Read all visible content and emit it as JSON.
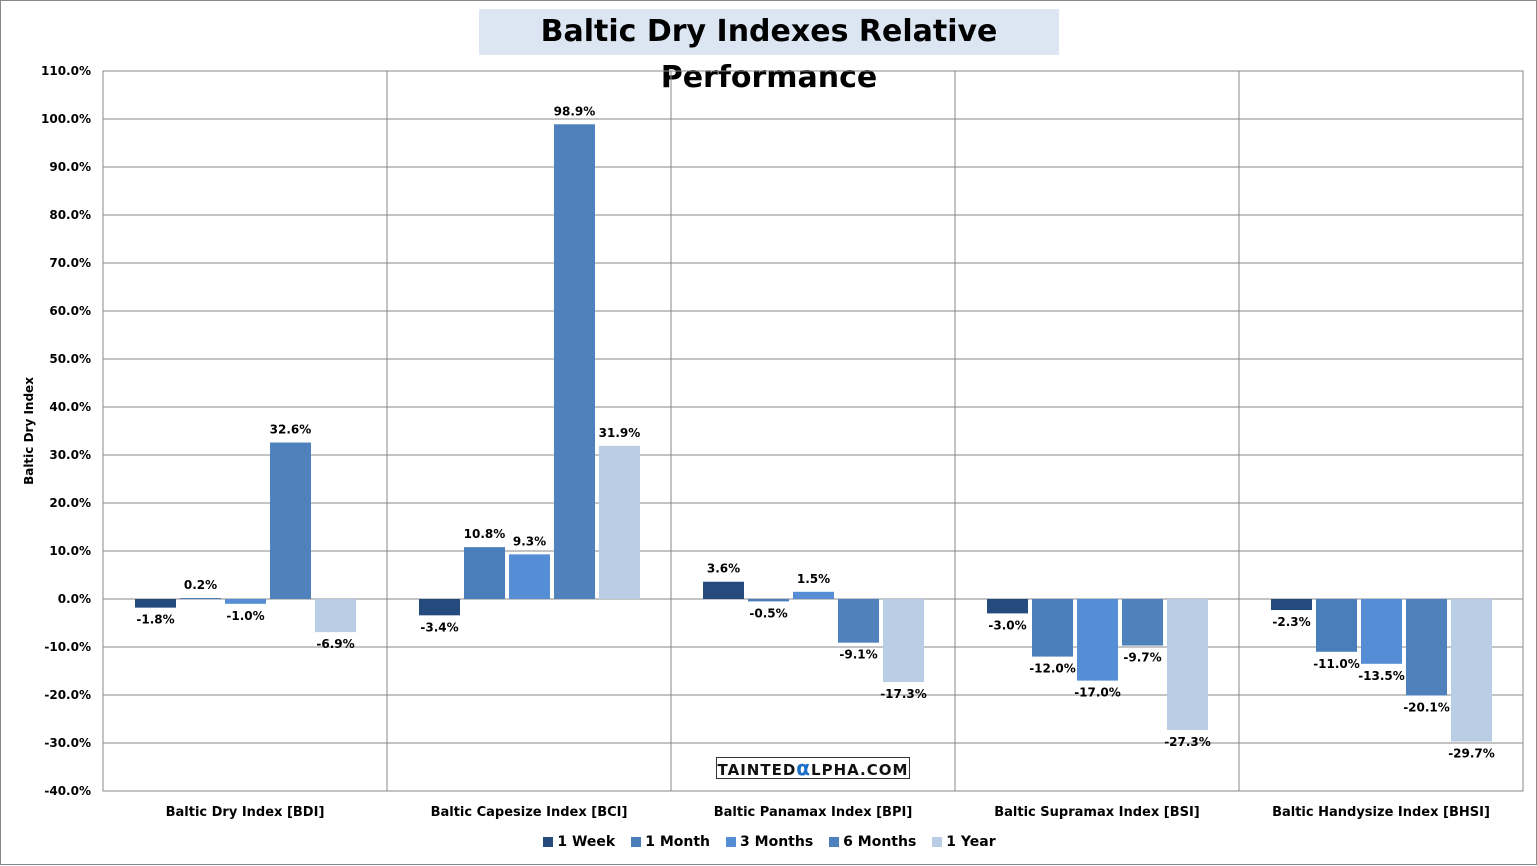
{
  "chart_data": {
    "type": "bar",
    "title": "Baltic Dry Indexes Relative Performance",
    "ylabel": "Baltic Dry  Index",
    "xlabel": "",
    "ylim": [
      -40,
      110
    ],
    "ytick_step": 10,
    "grid": true,
    "legend_position": "bottom",
    "categories": [
      "Baltic Dry Index [BDI]",
      "Baltic Capesize Index [BCI]",
      "Baltic Panamax Index [BPI]",
      "Baltic Supramax Index [BSI]",
      "Baltic Handysize Index [BHSI]"
    ],
    "series": [
      {
        "name": "1 Week",
        "color": "#254a7d",
        "values": [
          -1.8,
          -3.4,
          3.6,
          -3.0,
          -2.3
        ]
      },
      {
        "name": "1 Month",
        "color": "#4a7ebb",
        "values": [
          0.2,
          10.8,
          -0.5,
          -12.0,
          -11.0
        ]
      },
      {
        "name": "3 Months",
        "color": "#558ed5",
        "values": [
          -1.0,
          9.3,
          1.5,
          -17.0,
          -13.5
        ]
      },
      {
        "name": "6 Months",
        "color": "#4f81bd",
        "values": [
          32.6,
          98.9,
          -9.1,
          -9.7,
          -20.1
        ]
      },
      {
        "name": "1 Year",
        "color": "#b9cde5",
        "values": [
          -6.9,
          31.9,
          -17.3,
          -27.3,
          -29.7
        ]
      }
    ]
  },
  "watermark": {
    "pre": "TAINTED",
    "alpha": "α",
    "post": "LPHA.COM"
  }
}
